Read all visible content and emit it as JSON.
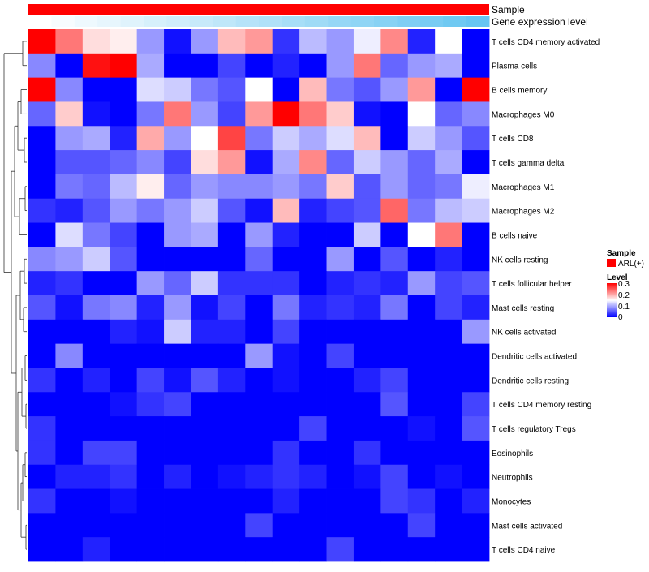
{
  "chart_data": {
    "type": "heatmap",
    "title": "",
    "annotation_tracks": [
      {
        "name": "Sample",
        "kind": "categorical",
        "value": "ARL(+)",
        "color": "#ff0000"
      },
      {
        "name": "Gene expression level",
        "kind": "gradient",
        "values": [
          0.0,
          0.05,
          0.1,
          0.14,
          0.19,
          0.24,
          0.28,
          0.33,
          0.38,
          0.43,
          0.47,
          0.52,
          0.57,
          0.62,
          0.66,
          0.71,
          0.76,
          0.8,
          0.85,
          0.9
        ],
        "low_color": "#ffffff",
        "high_color": "#56bff0"
      }
    ],
    "rows": [
      "T cells CD4 memory activated",
      "Plasma cells",
      "B cells memory",
      "Macrophages M0",
      "T cells CD8",
      "T cells gamma delta",
      "Macrophages M1",
      "Macrophages M2",
      "B cells naive",
      "NK cells resting",
      "T cells follicular helper",
      "Mast cells resting",
      "NK cells activated",
      "Dendritic cells activated",
      "Dendritic cells resting",
      "T cells CD4 memory resting",
      "T cells regulatory  Tregs",
      "Eosinophils",
      "Neutrophils",
      "Monocytes",
      "Mast cells activated",
      "T cells CD4 naive"
    ],
    "n_columns": 17,
    "values": [
      [
        0.3,
        0.23,
        0.17,
        0.16,
        0.09,
        0.01,
        0.09,
        0.19,
        0.21,
        0.03,
        0.11,
        0.09,
        0.14,
        0.22,
        0.02,
        0.15,
        0.0
      ],
      [
        0.08,
        0.0,
        0.29,
        0.3,
        0.1,
        0.0,
        0.0,
        0.04,
        0.0,
        0.02,
        0.0,
        0.09,
        0.23,
        0.06,
        0.09,
        0.1,
        0.0
      ],
      [
        0.3,
        0.08,
        0.0,
        0.0,
        0.13,
        0.12,
        0.07,
        0.05,
        0.15,
        0.0,
        0.19,
        0.07,
        0.05,
        0.09,
        0.21,
        0.0,
        0.3
      ],
      [
        0.06,
        0.18,
        0.01,
        0.0,
        0.07,
        0.23,
        0.09,
        0.04,
        0.21,
        0.3,
        0.23,
        0.18,
        0.01,
        0.0,
        0.15,
        0.06,
        0.08
      ],
      [
        0.0,
        0.09,
        0.1,
        0.02,
        0.2,
        0.09,
        0.15,
        0.26,
        0.07,
        0.12,
        0.1,
        0.13,
        0.19,
        0.0,
        0.12,
        0.09,
        0.05
      ],
      [
        0.0,
        0.05,
        0.05,
        0.06,
        0.08,
        0.04,
        0.17,
        0.21,
        0.01,
        0.1,
        0.22,
        0.06,
        0.12,
        0.09,
        0.06,
        0.1,
        0.0
      ],
      [
        0.0,
        0.07,
        0.06,
        0.11,
        0.16,
        0.06,
        0.09,
        0.08,
        0.08,
        0.09,
        0.07,
        0.18,
        0.05,
        0.09,
        0.06,
        0.07,
        0.14
      ],
      [
        0.03,
        0.02,
        0.05,
        0.09,
        0.07,
        0.09,
        0.12,
        0.05,
        0.01,
        0.19,
        0.02,
        0.04,
        0.05,
        0.24,
        0.07,
        0.11,
        0.12
      ],
      [
        0.0,
        0.13,
        0.07,
        0.04,
        0.0,
        0.09,
        0.1,
        0.0,
        0.09,
        0.02,
        0.0,
        0.0,
        0.12,
        0.0,
        0.15,
        0.23,
        0.0
      ],
      [
        0.08,
        0.09,
        0.12,
        0.05,
        0.0,
        0.0,
        0.0,
        0.0,
        0.06,
        0.0,
        0.0,
        0.09,
        0.0,
        0.05,
        0.0,
        0.02,
        0.0
      ],
      [
        0.02,
        0.03,
        0.0,
        0.0,
        0.09,
        0.06,
        0.12,
        0.03,
        0.03,
        0.03,
        0.0,
        0.02,
        0.03,
        0.02,
        0.09,
        0.04,
        0.05
      ],
      [
        0.05,
        0.01,
        0.07,
        0.08,
        0.02,
        0.09,
        0.01,
        0.04,
        0.0,
        0.07,
        0.02,
        0.03,
        0.02,
        0.07,
        0.0,
        0.04,
        0.02
      ],
      [
        0.0,
        0.0,
        0.0,
        0.02,
        0.01,
        0.12,
        0.02,
        0.02,
        0.0,
        0.04,
        0.0,
        0.0,
        0.0,
        0.0,
        0.0,
        0.0,
        0.09
      ],
      [
        0.0,
        0.08,
        0.0,
        0.0,
        0.0,
        0.0,
        0.0,
        0.0,
        0.09,
        0.01,
        0.0,
        0.04,
        0.0,
        0.0,
        0.0,
        0.0,
        0.0
      ],
      [
        0.03,
        0.0,
        0.02,
        0.0,
        0.04,
        0.01,
        0.05,
        0.02,
        0.0,
        0.01,
        0.0,
        0.0,
        0.02,
        0.04,
        0.0,
        0.0,
        0.0
      ],
      [
        0.0,
        0.0,
        0.0,
        0.01,
        0.03,
        0.04,
        0.0,
        0.0,
        0.0,
        0.0,
        0.0,
        0.0,
        0.0,
        0.05,
        0.0,
        0.0,
        0.04
      ],
      [
        0.03,
        0.0,
        0.0,
        0.0,
        0.0,
        0.0,
        0.0,
        0.0,
        0.0,
        0.0,
        0.04,
        0.0,
        0.0,
        0.0,
        0.01,
        0.0,
        0.05
      ],
      [
        0.03,
        0.0,
        0.04,
        0.04,
        0.0,
        0.0,
        0.0,
        0.0,
        0.0,
        0.03,
        0.0,
        0.0,
        0.03,
        0.0,
        0.0,
        0.0,
        0.0
      ],
      [
        0.0,
        0.02,
        0.02,
        0.03,
        0.0,
        0.02,
        0.0,
        0.01,
        0.02,
        0.03,
        0.02,
        0.0,
        0.01,
        0.04,
        0.0,
        0.01,
        0.0
      ],
      [
        0.03,
        0.0,
        0.0,
        0.01,
        0.0,
        0.0,
        0.0,
        0.0,
        0.0,
        0.02,
        0.0,
        0.0,
        0.0,
        0.04,
        0.03,
        0.0,
        0.02
      ],
      [
        0.0,
        0.0,
        0.0,
        0.0,
        0.0,
        0.0,
        0.0,
        0.0,
        0.04,
        0.0,
        0.0,
        0.0,
        0.0,
        0.0,
        0.04,
        0.0,
        0.0
      ],
      [
        0.0,
        0.0,
        0.02,
        0.0,
        0.0,
        0.0,
        0.0,
        0.0,
        0.0,
        0.0,
        0.0,
        0.04,
        0.0,
        0.0,
        0.0,
        0.0,
        0.0
      ]
    ],
    "color_scale": {
      "min": 0,
      "mid": 0.15,
      "max": 0.3,
      "low": "#0000ff",
      "mid_color": "#ffffff",
      "high": "#ff0000"
    },
    "legend": {
      "position": "right",
      "sample_title": "Sample",
      "sample_item": "ARL(+)",
      "level_title": "Level",
      "level_ticks": [
        "0.3",
        "0.2",
        "0.1",
        "0"
      ],
      "level_tick_values": [
        0.3,
        0.2,
        0.1,
        0
      ]
    },
    "row_dendrogram": true
  }
}
